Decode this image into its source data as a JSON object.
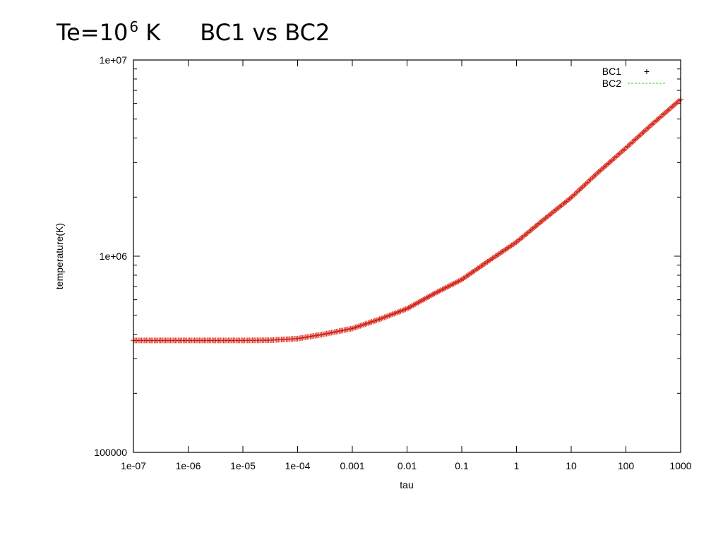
{
  "title": {
    "prefix": "Te=10",
    "exponent": "6",
    "unit": "K",
    "comparison": "BC1 vs BC2"
  },
  "chart_data": {
    "type": "line",
    "xlabel": "tau",
    "ylabel": "temperature(K)",
    "x_scale": "log",
    "y_scale": "log",
    "xlim": [
      1e-07,
      1000
    ],
    "ylim": [
      100000,
      10000000
    ],
    "x_ticks": [
      {
        "value": 1e-07,
        "label": "1e-07"
      },
      {
        "value": 1e-06,
        "label": "1e-06"
      },
      {
        "value": 1e-05,
        "label": "1e-05"
      },
      {
        "value": 0.0001,
        "label": "1e-04"
      },
      {
        "value": 0.001,
        "label": "0.001"
      },
      {
        "value": 0.01,
        "label": "0.01"
      },
      {
        "value": 0.1,
        "label": "0.1"
      },
      {
        "value": 1,
        "label": "1"
      },
      {
        "value": 10,
        "label": "10"
      },
      {
        "value": 100,
        "label": "100"
      },
      {
        "value": 1000,
        "label": "1000"
      }
    ],
    "y_ticks": [
      {
        "value": 100000,
        "label": "100000"
      },
      {
        "value": 1000000,
        "label": "1e+06"
      },
      {
        "value": 10000000,
        "label": "1e+07"
      }
    ],
    "grid": false,
    "legend_position": "top-right",
    "series": [
      {
        "name": "BC1",
        "style": "points",
        "marker": "+",
        "color": "#e8382c",
        "x": [
          1e-07,
          3e-07,
          1e-06,
          3e-06,
          1e-05,
          3e-05,
          0.0001,
          0.0003,
          0.001,
          0.003,
          0.01,
          0.03,
          0.1,
          0.3,
          1,
          3,
          10,
          30,
          100,
          300,
          1000
        ],
        "y": [
          372000,
          372000,
          372000,
          372000,
          372000,
          373000,
          380000,
          400000,
          428000,
          475000,
          540000,
          640000,
          760000,
          940000,
          1180000,
          1520000,
          1990000,
          2650000,
          3560000,
          4700000,
          6300000
        ]
      },
      {
        "name": "BC2",
        "style": "dashed",
        "color": "#32d232",
        "x": [
          1e-07,
          3e-07,
          1e-06,
          3e-06,
          1e-05,
          3e-05,
          0.0001,
          0.0003,
          0.001,
          0.003,
          0.01,
          0.03,
          0.1,
          0.3,
          1,
          3,
          10,
          30,
          100,
          300,
          1000
        ],
        "y": [
          372000,
          372000,
          372000,
          372000,
          372000,
          373000,
          380000,
          400000,
          428000,
          475000,
          540000,
          640000,
          760000,
          940000,
          1180000,
          1520000,
          1990000,
          2650000,
          3560000,
          4700000,
          6300000
        ]
      }
    ]
  }
}
